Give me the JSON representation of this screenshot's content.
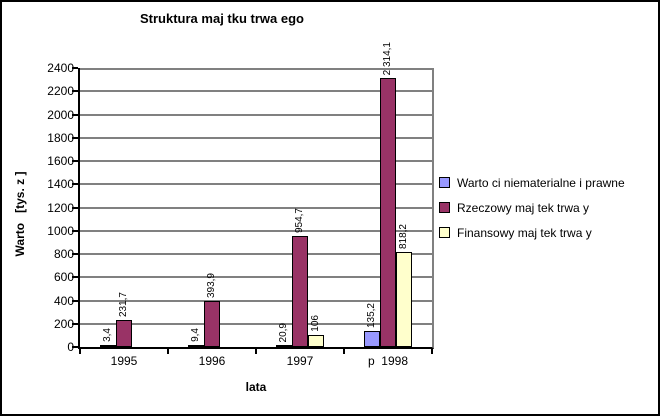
{
  "title": "Struktura maj tku trwa ego",
  "y_axis": {
    "title": "Warto   [tys. z ]",
    "tick_min": 0,
    "tick_max": 2400,
    "tick_step": 200
  },
  "x_axis": {
    "title": "lata",
    "categories": [
      "1995",
      "1996",
      "1997",
      "p  1998"
    ]
  },
  "legend": {
    "entries": [
      "Warto ci niematerialne i prawne",
      "Rzeczowy maj tek trwa y",
      "Finansowy maj tek trwa y"
    ]
  },
  "colors": {
    "series1": "#9999FF",
    "series2": "#993366",
    "series3": "#FFFFCC",
    "gridline": "#808080",
    "axis": "#000000",
    "background": "#FFFFFF"
  },
  "chart_data": {
    "type": "bar",
    "title": "Struktura maj tku trwa ego",
    "xlabel": "lata",
    "ylabel": "Warto   [tys. z ]",
    "categories": [
      "1995",
      "1996",
      "1997",
      "p  1998"
    ],
    "series": [
      {
        "name": "Warto ci niematerialne i prawne",
        "color": "#9999FF",
        "values": [
          3.4,
          9.4,
          20.9,
          135.2
        ],
        "labels": [
          "3,4",
          "9,4",
          "20,9",
          "135,2"
        ]
      },
      {
        "name": "Rzeczowy maj tek trwa y",
        "color": "#993366",
        "values": [
          231.7,
          393.9,
          954.7,
          2314.1
        ],
        "labels": [
          "231,7",
          "393,9",
          "954,7",
          "2 314,1"
        ]
      },
      {
        "name": "Finansowy maj tek trwa y",
        "color": "#FFFFCC",
        "values": [
          0,
          0,
          106,
          818.2
        ],
        "labels": [
          "",
          "",
          "106",
          "818,2"
        ]
      }
    ],
    "ylim": [
      0,
      2400
    ],
    "ytick_step": 200,
    "grid": true,
    "legend_position": "right"
  }
}
